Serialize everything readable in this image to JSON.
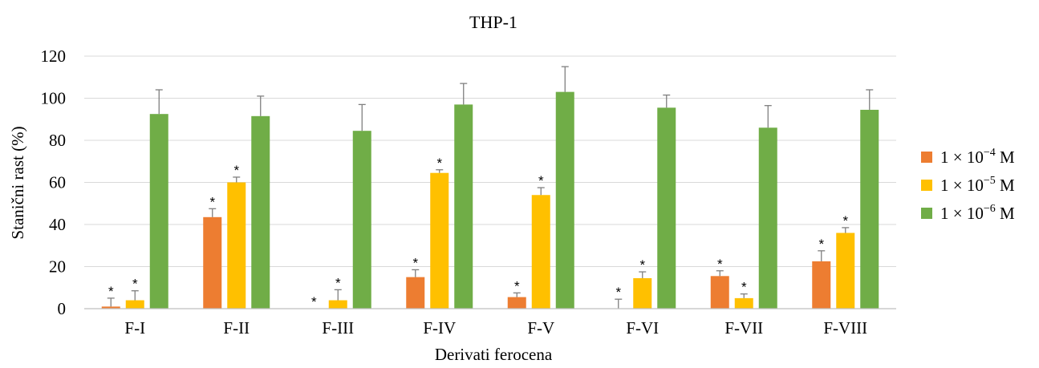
{
  "chart_data": {
    "type": "bar",
    "title": "THP-1",
    "xlabel": "Derivati ferocena",
    "ylabel": "Stanični rast (%)",
    "ylim": [
      0,
      120
    ],
    "yticks": [
      "0",
      "20",
      "40",
      "60",
      "80",
      "100",
      "120"
    ],
    "grid": true,
    "legend_position": "right",
    "categories": [
      "F-I",
      "F-II",
      "F-III",
      "F-IV",
      "F-V",
      "F-VI",
      "F-VII",
      "F-VIII"
    ],
    "series": [
      {
        "name": "1 × 10⁻⁴ M",
        "name_base": "1 × 10",
        "name_exp": "−4",
        "name_unit": " M",
        "color": "#ED7D31",
        "values": [
          1,
          43.5,
          0,
          15,
          5.5,
          0,
          15.5,
          22.5
        ],
        "errors": [
          4,
          4,
          0,
          3.5,
          2,
          4.5,
          2.5,
          5
        ],
        "significant": [
          true,
          true,
          true,
          true,
          true,
          true,
          true,
          true
        ]
      },
      {
        "name": "1 × 10⁻⁵ M",
        "name_base": "1 × 10",
        "name_exp": "−5",
        "name_unit": " M",
        "color": "#FFC000",
        "values": [
          4,
          60,
          4,
          64.5,
          54,
          14.5,
          5,
          36
        ],
        "errors": [
          4.5,
          2.5,
          5,
          1.5,
          3.5,
          3,
          2,
          2.5
        ],
        "significant": [
          true,
          true,
          true,
          true,
          true,
          true,
          true,
          true
        ]
      },
      {
        "name": "1 × 10⁻⁶ M",
        "name_base": "1 × 10",
        "name_exp": "−6",
        "name_unit": " M",
        "color": "#70AD47",
        "values": [
          92.5,
          91.5,
          84.5,
          97,
          103,
          95.5,
          86,
          94.5
        ],
        "errors": [
          11.5,
          9.5,
          12.5,
          10,
          12,
          6,
          10.5,
          9.5
        ],
        "significant": [
          false,
          false,
          false,
          false,
          false,
          false,
          false,
          false
        ]
      }
    ],
    "annotation_symbol": "*"
  }
}
